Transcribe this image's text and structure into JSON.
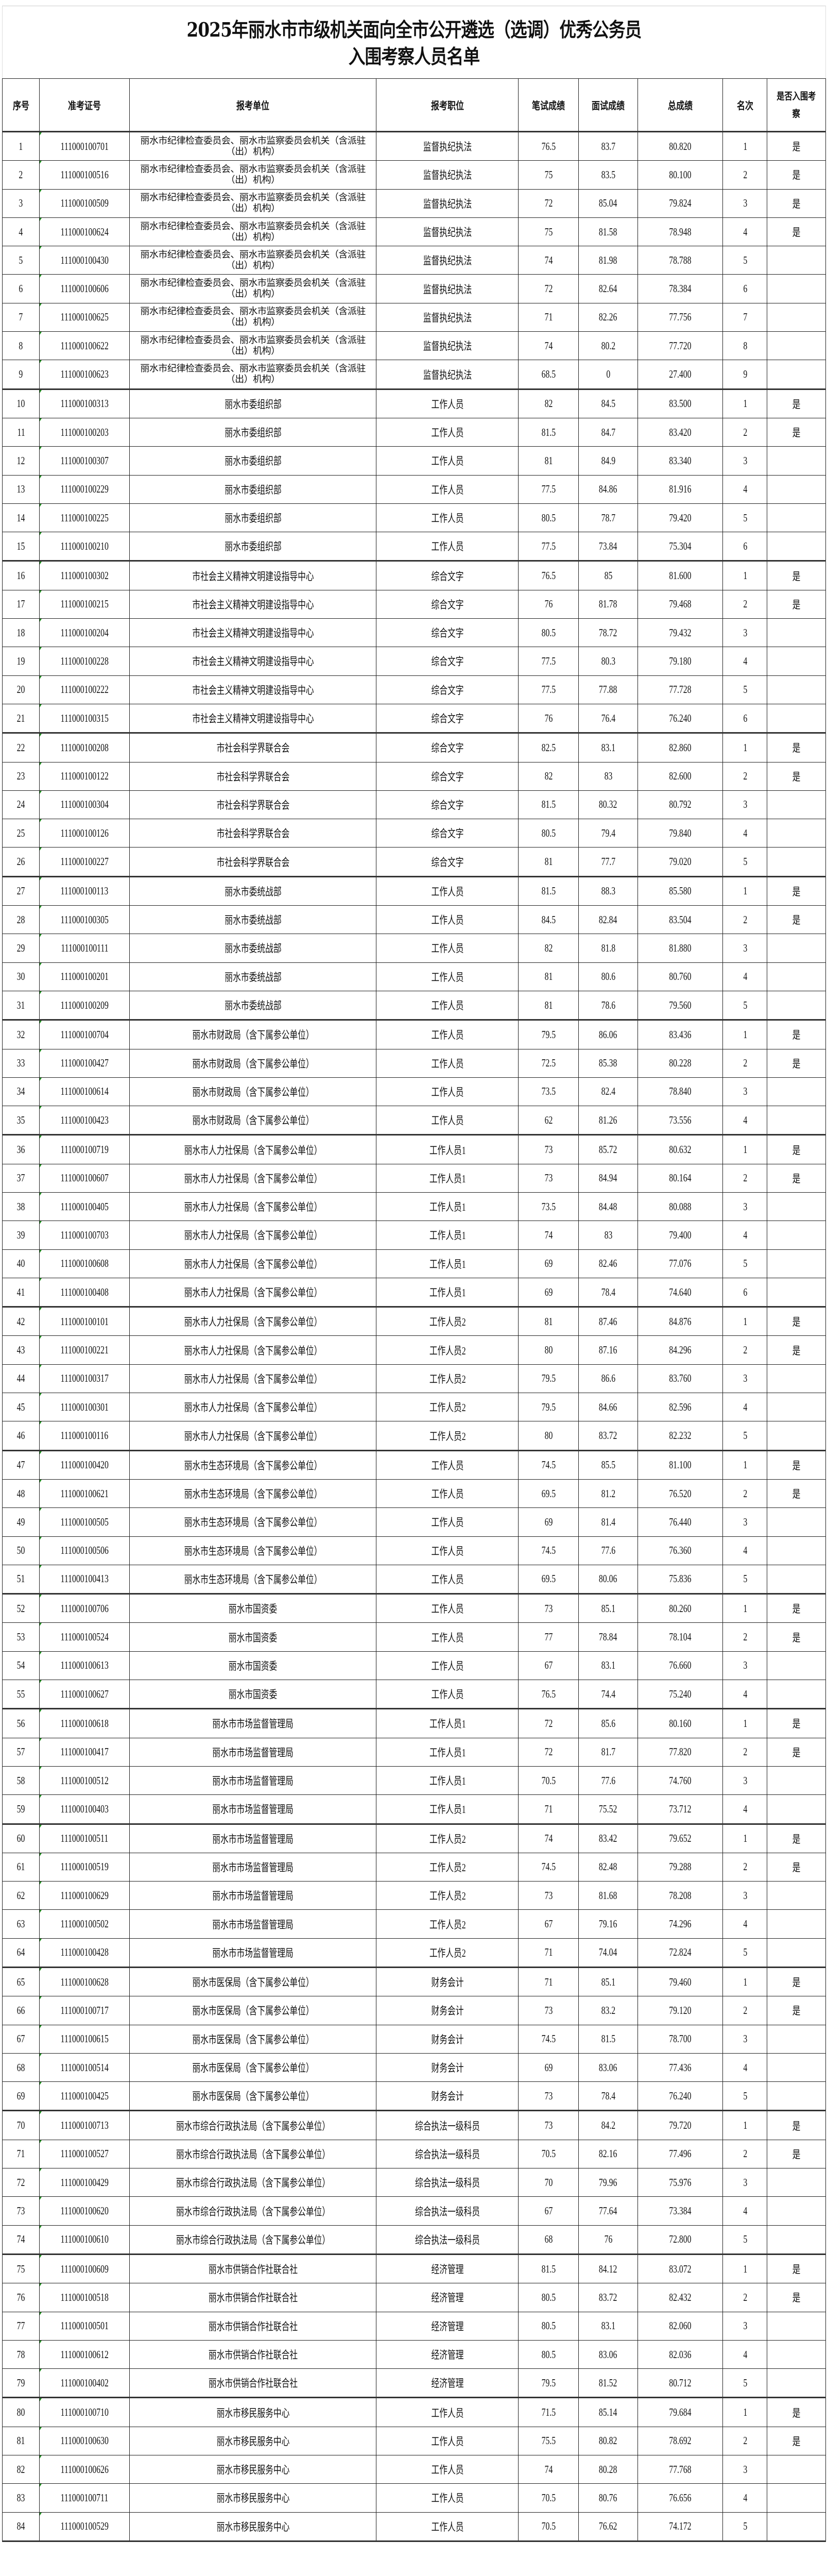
{
  "title": {
    "line1": "2025年丽水市市级机关面向全市公开遴选（选调）优秀公务员",
    "line2": "入围考察人员名单"
  },
  "headers": [
    "序号",
    "准考证号",
    "报考单位",
    "报考职位",
    "笔试成绩",
    "面试成绩",
    "总成绩",
    "名次",
    "是否入围考察"
  ],
  "rows": [
    [
      "1",
      "111000100701",
      "丽水市纪律检查委员会、丽水市监察委员会机关（含派驻（出）机构）",
      "监督执纪执法",
      "76.5",
      "83.7",
      "80.820",
      "1",
      "是"
    ],
    [
      "2",
      "111000100516",
      "丽水市纪律检查委员会、丽水市监察委员会机关（含派驻（出）机构）",
      "监督执纪执法",
      "75",
      "83.5",
      "80.100",
      "2",
      "是"
    ],
    [
      "3",
      "111000100509",
      "丽水市纪律检查委员会、丽水市监察委员会机关（含派驻（出）机构）",
      "监督执纪执法",
      "72",
      "85.04",
      "79.824",
      "3",
      "是"
    ],
    [
      "4",
      "111000100624",
      "丽水市纪律检查委员会、丽水市监察委员会机关（含派驻（出）机构）",
      "监督执纪执法",
      "75",
      "81.58",
      "78.948",
      "4",
      "是"
    ],
    [
      "5",
      "111000100430",
      "丽水市纪律检查委员会、丽水市监察委员会机关（含派驻（出）机构）",
      "监督执纪执法",
      "74",
      "81.98",
      "78.788",
      "5",
      ""
    ],
    [
      "6",
      "111000100606",
      "丽水市纪律检查委员会、丽水市监察委员会机关（含派驻（出）机构）",
      "监督执纪执法",
      "72",
      "82.64",
      "78.384",
      "6",
      ""
    ],
    [
      "7",
      "111000100625",
      "丽水市纪律检查委员会、丽水市监察委员会机关（含派驻（出）机构）",
      "监督执纪执法",
      "71",
      "82.26",
      "77.756",
      "7",
      ""
    ],
    [
      "8",
      "111000100622",
      "丽水市纪律检查委员会、丽水市监察委员会机关（含派驻（出）机构）",
      "监督执纪执法",
      "74",
      "80.2",
      "77.720",
      "8",
      ""
    ],
    [
      "9",
      "111000100623",
      "丽水市纪律检查委员会、丽水市监察委员会机关（含派驻（出）机构）",
      "监督执纪执法",
      "68.5",
      "0",
      "27.400",
      "9",
      ""
    ],
    [
      "10",
      "111000100313",
      "丽水市委组织部",
      "工作人员",
      "82",
      "84.5",
      "83.500",
      "1",
      "是"
    ],
    [
      "11",
      "111000100203",
      "丽水市委组织部",
      "工作人员",
      "81.5",
      "84.7",
      "83.420",
      "2",
      "是"
    ],
    [
      "12",
      "111000100307",
      "丽水市委组织部",
      "工作人员",
      "81",
      "84.9",
      "83.340",
      "3",
      ""
    ],
    [
      "13",
      "111000100229",
      "丽水市委组织部",
      "工作人员",
      "77.5",
      "84.86",
      "81.916",
      "4",
      ""
    ],
    [
      "14",
      "111000100225",
      "丽水市委组织部",
      "工作人员",
      "80.5",
      "78.7",
      "79.420",
      "5",
      ""
    ],
    [
      "15",
      "111000100210",
      "丽水市委组织部",
      "工作人员",
      "77.5",
      "73.84",
      "75.304",
      "6",
      ""
    ],
    [
      "16",
      "111000100302",
      "市社会主义精神文明建设指导中心",
      "综合文字",
      "76.5",
      "85",
      "81.600",
      "1",
      "是"
    ],
    [
      "17",
      "111000100215",
      "市社会主义精神文明建设指导中心",
      "综合文字",
      "76",
      "81.78",
      "79.468",
      "2",
      "是"
    ],
    [
      "18",
      "111000100204",
      "市社会主义精神文明建设指导中心",
      "综合文字",
      "80.5",
      "78.72",
      "79.432",
      "3",
      ""
    ],
    [
      "19",
      "111000100228",
      "市社会主义精神文明建设指导中心",
      "综合文字",
      "77.5",
      "80.3",
      "79.180",
      "4",
      ""
    ],
    [
      "20",
      "111000100222",
      "市社会主义精神文明建设指导中心",
      "综合文字",
      "77.5",
      "77.88",
      "77.728",
      "5",
      ""
    ],
    [
      "21",
      "111000100315",
      "市社会主义精神文明建设指导中心",
      "综合文字",
      "76",
      "76.4",
      "76.240",
      "6",
      ""
    ],
    [
      "22",
      "111000100208",
      "市社会科学界联合会",
      "综合文字",
      "82.5",
      "83.1",
      "82.860",
      "1",
      "是"
    ],
    [
      "23",
      "111000100122",
      "市社会科学界联合会",
      "综合文字",
      "82",
      "83",
      "82.600",
      "2",
      "是"
    ],
    [
      "24",
      "111000100304",
      "市社会科学界联合会",
      "综合文字",
      "81.5",
      "80.32",
      "80.792",
      "3",
      ""
    ],
    [
      "25",
      "111000100126",
      "市社会科学界联合会",
      "综合文字",
      "80.5",
      "79.4",
      "79.840",
      "4",
      ""
    ],
    [
      "26",
      "111000100227",
      "市社会科学界联合会",
      "综合文字",
      "81",
      "77.7",
      "79.020",
      "5",
      ""
    ],
    [
      "27",
      "111000100113",
      "丽水市委统战部",
      "工作人员",
      "81.5",
      "88.3",
      "85.580",
      "1",
      "是"
    ],
    [
      "28",
      "111000100305",
      "丽水市委统战部",
      "工作人员",
      "84.5",
      "82.84",
      "83.504",
      "2",
      "是"
    ],
    [
      "29",
      "111000100111",
      "丽水市委统战部",
      "工作人员",
      "82",
      "81.8",
      "81.880",
      "3",
      ""
    ],
    [
      "30",
      "111000100201",
      "丽水市委统战部",
      "工作人员",
      "81",
      "80.6",
      "80.760",
      "4",
      ""
    ],
    [
      "31",
      "111000100209",
      "丽水市委统战部",
      "工作人员",
      "81",
      "78.6",
      "79.560",
      "5",
      ""
    ],
    [
      "32",
      "111000100704",
      "丽水市财政局（含下属参公单位）",
      "工作人员",
      "79.5",
      "86.06",
      "83.436",
      "1",
      "是"
    ],
    [
      "33",
      "111000100427",
      "丽水市财政局（含下属参公单位）",
      "工作人员",
      "72.5",
      "85.38",
      "80.228",
      "2",
      "是"
    ],
    [
      "34",
      "111000100614",
      "丽水市财政局（含下属参公单位）",
      "工作人员",
      "73.5",
      "82.4",
      "78.840",
      "3",
      ""
    ],
    [
      "35",
      "111000100423",
      "丽水市财政局（含下属参公单位）",
      "工作人员",
      "62",
      "81.26",
      "73.556",
      "4",
      ""
    ],
    [
      "36",
      "111000100719",
      "丽水市人力社保局（含下属参公单位）",
      "工作人员1",
      "73",
      "85.72",
      "80.632",
      "1",
      "是"
    ],
    [
      "37",
      "111000100607",
      "丽水市人力社保局（含下属参公单位）",
      "工作人员1",
      "73",
      "84.94",
      "80.164",
      "2",
      "是"
    ],
    [
      "38",
      "111000100405",
      "丽水市人力社保局（含下属参公单位）",
      "工作人员1",
      "73.5",
      "84.48",
      "80.088",
      "3",
      ""
    ],
    [
      "39",
      "111000100703",
      "丽水市人力社保局（含下属参公单位）",
      "工作人员1",
      "74",
      "83",
      "79.400",
      "4",
      ""
    ],
    [
      "40",
      "111000100608",
      "丽水市人力社保局（含下属参公单位）",
      "工作人员1",
      "69",
      "82.46",
      "77.076",
      "5",
      ""
    ],
    [
      "41",
      "111000100408",
      "丽水市人力社保局（含下属参公单位）",
      "工作人员1",
      "69",
      "78.4",
      "74.640",
      "6",
      ""
    ],
    [
      "42",
      "111000100101",
      "丽水市人力社保局（含下属参公单位）",
      "工作人员2",
      "81",
      "87.46",
      "84.876",
      "1",
      "是"
    ],
    [
      "43",
      "111000100221",
      "丽水市人力社保局（含下属参公单位）",
      "工作人员2",
      "80",
      "87.16",
      "84.296",
      "2",
      "是"
    ],
    [
      "44",
      "111000100317",
      "丽水市人力社保局（含下属参公单位）",
      "工作人员2",
      "79.5",
      "86.6",
      "83.760",
      "3",
      ""
    ],
    [
      "45",
      "111000100301",
      "丽水市人力社保局（含下属参公单位）",
      "工作人员2",
      "79.5",
      "84.66",
      "82.596",
      "4",
      ""
    ],
    [
      "46",
      "111000100116",
      "丽水市人力社保局（含下属参公单位）",
      "工作人员2",
      "80",
      "83.72",
      "82.232",
      "5",
      ""
    ],
    [
      "47",
      "111000100420",
      "丽水市生态环境局（含下属参公单位）",
      "工作人员",
      "74.5",
      "85.5",
      "81.100",
      "1",
      "是"
    ],
    [
      "48",
      "111000100621",
      "丽水市生态环境局（含下属参公单位）",
      "工作人员",
      "69.5",
      "81.2",
      "76.520",
      "2",
      "是"
    ],
    [
      "49",
      "111000100505",
      "丽水市生态环境局（含下属参公单位）",
      "工作人员",
      "69",
      "81.4",
      "76.440",
      "3",
      ""
    ],
    [
      "50",
      "111000100506",
      "丽水市生态环境局（含下属参公单位）",
      "工作人员",
      "74.5",
      "77.6",
      "76.360",
      "4",
      ""
    ],
    [
      "51",
      "111000100413",
      "丽水市生态环境局（含下属参公单位）",
      "工作人员",
      "69.5",
      "80.06",
      "75.836",
      "5",
      ""
    ],
    [
      "52",
      "111000100706",
      "丽水市国资委",
      "工作人员",
      "73",
      "85.1",
      "80.260",
      "1",
      "是"
    ],
    [
      "53",
      "111000100524",
      "丽水市国资委",
      "工作人员",
      "77",
      "78.84",
      "78.104",
      "2",
      "是"
    ],
    [
      "54",
      "111000100613",
      "丽水市国资委",
      "工作人员",
      "67",
      "83.1",
      "76.660",
      "3",
      ""
    ],
    [
      "55",
      "111000100627",
      "丽水市国资委",
      "工作人员",
      "76.5",
      "74.4",
      "75.240",
      "4",
      ""
    ],
    [
      "56",
      "111000100618",
      "丽水市市场监督管理局",
      "工作人员1",
      "72",
      "85.6",
      "80.160",
      "1",
      "是"
    ],
    [
      "57",
      "111000100417",
      "丽水市市场监督管理局",
      "工作人员1",
      "72",
      "81.7",
      "77.820",
      "2",
      "是"
    ],
    [
      "58",
      "111000100512",
      "丽水市市场监督管理局",
      "工作人员1",
      "70.5",
      "77.6",
      "74.760",
      "3",
      ""
    ],
    [
      "59",
      "111000100403",
      "丽水市市场监督管理局",
      "工作人员1",
      "71",
      "75.52",
      "73.712",
      "4",
      ""
    ],
    [
      "60",
      "111000100511",
      "丽水市市场监督管理局",
      "工作人员2",
      "74",
      "83.42",
      "79.652",
      "1",
      "是"
    ],
    [
      "61",
      "111000100519",
      "丽水市市场监督管理局",
      "工作人员2",
      "74.5",
      "82.48",
      "79.288",
      "2",
      "是"
    ],
    [
      "62",
      "111000100629",
      "丽水市市场监督管理局",
      "工作人员2",
      "73",
      "81.68",
      "78.208",
      "3",
      ""
    ],
    [
      "63",
      "111000100502",
      "丽水市市场监督管理局",
      "工作人员2",
      "67",
      "79.16",
      "74.296",
      "4",
      ""
    ],
    [
      "64",
      "111000100428",
      "丽水市市场监督管理局",
      "工作人员2",
      "71",
      "74.04",
      "72.824",
      "5",
      ""
    ],
    [
      "65",
      "111000100628",
      "丽水市医保局（含下属参公单位）",
      "财务会计",
      "71",
      "85.1",
      "79.460",
      "1",
      "是"
    ],
    [
      "66",
      "111000100717",
      "丽水市医保局（含下属参公单位）",
      "财务会计",
      "73",
      "83.2",
      "79.120",
      "2",
      "是"
    ],
    [
      "67",
      "111000100615",
      "丽水市医保局（含下属参公单位）",
      "财务会计",
      "74.5",
      "81.5",
      "78.700",
      "3",
      ""
    ],
    [
      "68",
      "111000100514",
      "丽水市医保局（含下属参公单位）",
      "财务会计",
      "69",
      "83.06",
      "77.436",
      "4",
      ""
    ],
    [
      "69",
      "111000100425",
      "丽水市医保局（含下属参公单位）",
      "财务会计",
      "73",
      "78.4",
      "76.240",
      "5",
      ""
    ],
    [
      "70",
      "111000100713",
      "丽水市综合行政执法局（含下属参公单位）",
      "综合执法一级科员",
      "73",
      "84.2",
      "79.720",
      "1",
      "是"
    ],
    [
      "71",
      "111000100527",
      "丽水市综合行政执法局（含下属参公单位）",
      "综合执法一级科员",
      "70.5",
      "82.16",
      "77.496",
      "2",
      "是"
    ],
    [
      "72",
      "111000100429",
      "丽水市综合行政执法局（含下属参公单位）",
      "综合执法一级科员",
      "70",
      "79.96",
      "75.976",
      "3",
      ""
    ],
    [
      "73",
      "111000100620",
      "丽水市综合行政执法局（含下属参公单位）",
      "综合执法一级科员",
      "67",
      "77.64",
      "73.384",
      "4",
      ""
    ],
    [
      "74",
      "111000100610",
      "丽水市综合行政执法局（含下属参公单位）",
      "综合执法一级科员",
      "68",
      "76",
      "72.800",
      "5",
      ""
    ],
    [
      "75",
      "111000100609",
      "丽水市供销合作社联合社",
      "经济管理",
      "81.5",
      "84.12",
      "83.072",
      "1",
      "是"
    ],
    [
      "76",
      "111000100518",
      "丽水市供销合作社联合社",
      "经济管理",
      "80.5",
      "83.72",
      "82.432",
      "2",
      "是"
    ],
    [
      "77",
      "111000100501",
      "丽水市供销合作社联合社",
      "经济管理",
      "80.5",
      "83.1",
      "82.060",
      "3",
      ""
    ],
    [
      "78",
      "111000100612",
      "丽水市供销合作社联合社",
      "经济管理",
      "80.5",
      "83.06",
      "82.036",
      "4",
      ""
    ],
    [
      "79",
      "111000100402",
      "丽水市供销合作社联合社",
      "经济管理",
      "79.5",
      "81.52",
      "80.712",
      "5",
      ""
    ],
    [
      "80",
      "111000100710",
      "丽水市移民服务中心",
      "工作人员",
      "71.5",
      "85.14",
      "79.684",
      "1",
      "是"
    ],
    [
      "81",
      "111000100630",
      "丽水市移民服务中心",
      "工作人员",
      "75.5",
      "80.82",
      "78.692",
      "2",
      "是"
    ],
    [
      "82",
      "111000100626",
      "丽水市移民服务中心",
      "工作人员",
      "74",
      "80.28",
      "77.768",
      "3",
      ""
    ],
    [
      "83",
      "111000100711",
      "丽水市移民服务中心",
      "工作人员",
      "70.5",
      "80.76",
      "76.656",
      "4",
      ""
    ],
    [
      "84",
      "111000100529",
      "丽水市移民服务中心",
      "工作人员",
      "70.5",
      "76.62",
      "74.172",
      "5",
      ""
    ]
  ]
}
